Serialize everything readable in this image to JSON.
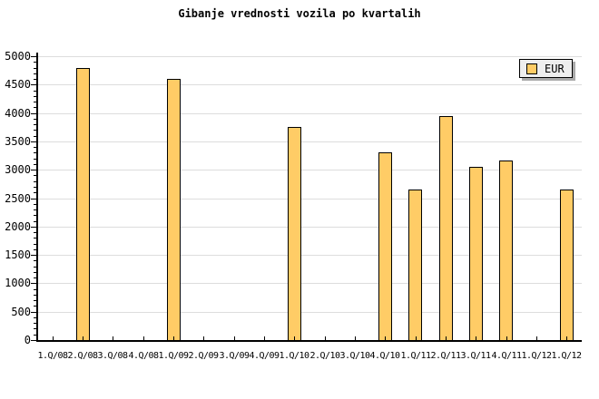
{
  "chart_data": {
    "type": "bar",
    "title": "Gibanje vrednosti vozila po kvartalih",
    "categories": [
      "1.Q/08",
      "2.Q/08",
      "3.Q/08",
      "4.Q/08",
      "1.Q/09",
      "2.Q/09",
      "3.Q/09",
      "4.Q/09",
      "1.Q/10",
      "2.Q/10",
      "3.Q/10",
      "4.Q/10",
      "1.Q/11",
      "2.Q/11",
      "3.Q/11",
      "4.Q/11",
      "1.Q/12",
      "1.Q/12"
    ],
    "series": [
      {
        "name": "EUR",
        "values": [
          0,
          4800,
          0,
          0,
          4600,
          0,
          0,
          0,
          3750,
          0,
          0,
          3300,
          2650,
          3950,
          3050,
          3170,
          0,
          2650
        ]
      }
    ],
    "xlabel": "",
    "ylabel": "",
    "ylim": [
      0,
      5000
    ],
    "y_major_step": 500,
    "y_minor_step": 100,
    "y_tick_labels": [
      "0",
      "500",
      "1000",
      "1500",
      "2000",
      "2500",
      "3000",
      "3500",
      "4000",
      "4500",
      "5000"
    ],
    "grid": "horizontal-major",
    "legend_position": "top-right",
    "legend_label": "EUR"
  },
  "colors": {
    "background": "#FFFFFF",
    "bar_fill": "#FFCC66",
    "bar_border": "#000000",
    "grid": "#DDDDDD",
    "axis": "#000000",
    "text": "#000000",
    "legend_bg": "#EEEEEE",
    "legend_shadow": "#AAAAAA"
  }
}
